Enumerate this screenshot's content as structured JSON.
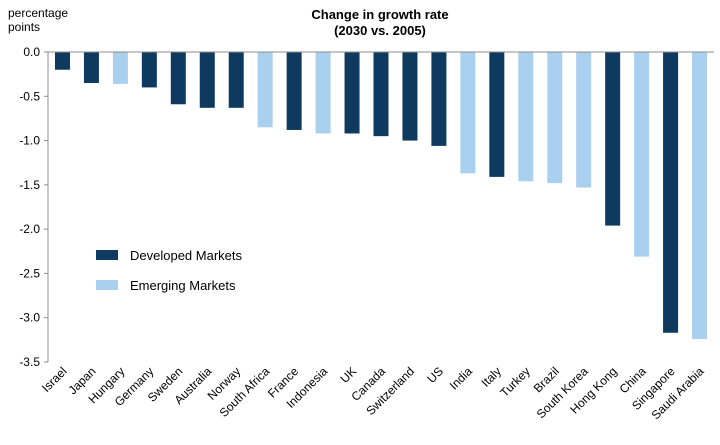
{
  "chart_data": {
    "type": "bar",
    "title": "Change in growth rate",
    "subtitle": "(2030 vs. 2005)",
    "ylabel_line1": "percentage",
    "ylabel_line2": "points",
    "ylim": [
      -3.5,
      0.0
    ],
    "yticks": [
      0.0,
      -0.5,
      -1.0,
      -1.5,
      -2.0,
      -2.5,
      -3.0,
      -3.5
    ],
    "ytick_labels": [
      "0.0",
      "-0.5",
      "-1.0",
      "-1.5",
      "-2.0",
      "-2.5",
      "-3.0",
      "-3.5"
    ],
    "categories": [
      "Israel",
      "Japan",
      "Hungary",
      "Germany",
      "Sweden",
      "Australia",
      "Norway",
      "South Africa",
      "France",
      "Indonesia",
      "UK",
      "Canada",
      "Switzerland",
      "US",
      "India",
      "Italy",
      "Turkey",
      "Brazil",
      "South Korea",
      "Hong Kong",
      "China",
      "Singapore",
      "Saudi Arabia"
    ],
    "values": [
      -0.2,
      -0.35,
      -0.36,
      -0.4,
      -0.59,
      -0.63,
      -0.63,
      -0.85,
      -0.88,
      -0.92,
      -0.92,
      -0.95,
      -1.0,
      -1.06,
      -1.37,
      -1.41,
      -1.46,
      -1.48,
      -1.53,
      -1.96,
      -2.31,
      -3.17,
      -3.24
    ],
    "groups": [
      "developed",
      "developed",
      "emerging",
      "developed",
      "developed",
      "developed",
      "developed",
      "emerging",
      "developed",
      "emerging",
      "developed",
      "developed",
      "developed",
      "developed",
      "emerging",
      "developed",
      "emerging",
      "emerging",
      "emerging",
      "developed",
      "emerging",
      "developed",
      "emerging"
    ],
    "legend": {
      "developed": "Developed Markets",
      "emerging": "Emerging Markets",
      "position": "left-middle"
    },
    "colors": {
      "developed": "#0d3a5e",
      "emerging": "#a9d0ee",
      "axis": "#8c8c8c"
    }
  }
}
